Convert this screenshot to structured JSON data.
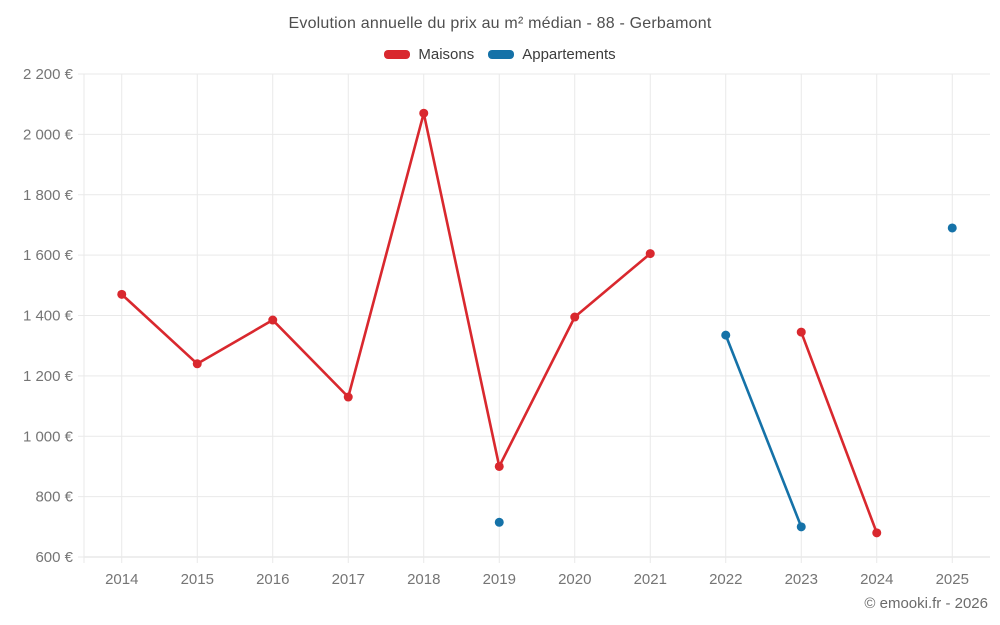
{
  "chart_data": {
    "type": "line",
    "title": "Evolution annuelle du prix au m² médian - 88 - Gerbamont",
    "categories": [
      "2014",
      "2015",
      "2016",
      "2017",
      "2018",
      "2019",
      "2020",
      "2021",
      "2022",
      "2023",
      "2024",
      "2025"
    ],
    "series": [
      {
        "name": "Maisons",
        "color": "#d9282e",
        "values": [
          1470,
          1240,
          1385,
          1130,
          2070,
          900,
          1395,
          1605,
          null,
          1345,
          680,
          null
        ]
      },
      {
        "name": "Appartements",
        "color": "#1572a8",
        "values": [
          null,
          null,
          null,
          null,
          null,
          715,
          null,
          null,
          1335,
          700,
          null,
          1690
        ]
      }
    ],
    "xlabel": "",
    "ylabel": "",
    "ylim": [
      600,
      2200
    ],
    "ytick_step": 200,
    "value_suffix": " €",
    "grid": true,
    "legend_position": "top",
    "grid_color": "#e9e9e9",
    "tick_text_color": "#757575"
  },
  "footer": {
    "copyright": "© emooki.fr - 2026"
  }
}
